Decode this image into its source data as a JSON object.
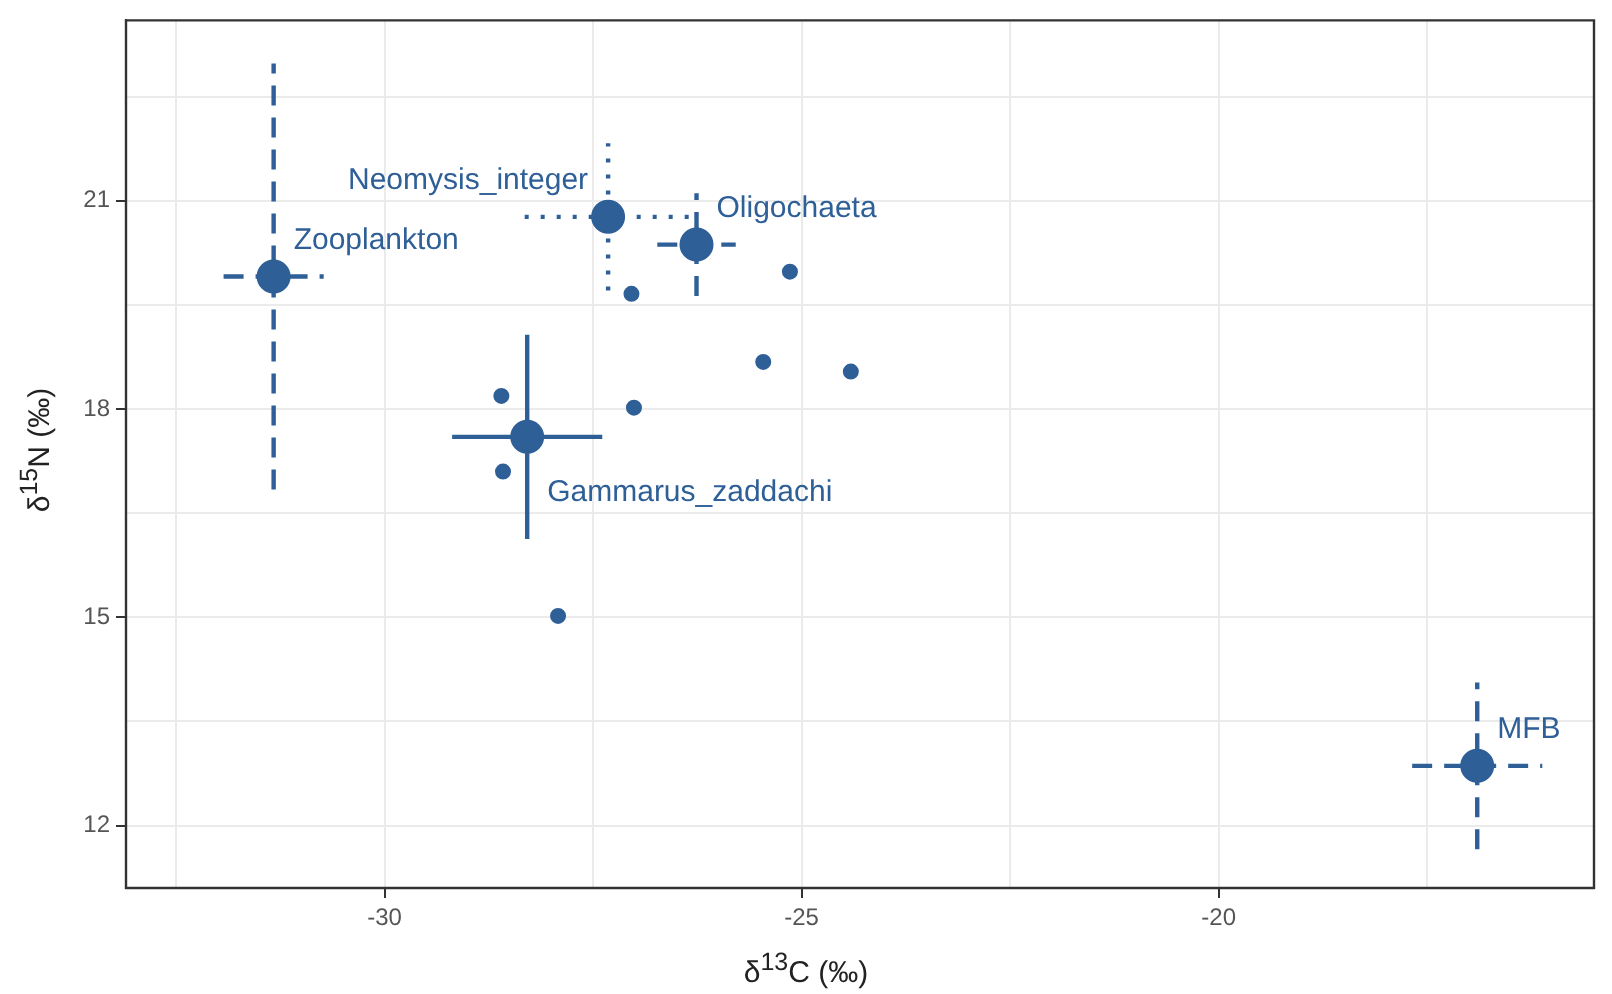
{
  "chart_data": {
    "type": "scatter",
    "xlabel": "δ$^{13}$C (‰)",
    "ylabel": "δ$^{15}$N (‰)",
    "xlim": [
      -33.1,
      -15.5
    ],
    "ylim": [
      11.1,
      23.6
    ],
    "xticks": [
      {
        "value": -32.5,
        "label": null
      },
      -30,
      {
        "value": -27.5,
        "label": null
      },
      -25,
      {
        "value": -22.5,
        "label": null
      },
      -20,
      {
        "value": -17.5,
        "label": null
      }
    ],
    "yticks": [
      {
        "value": 22.5,
        "label": null
      },
      21,
      {
        "value": 19.5,
        "label": null
      },
      18,
      {
        "value": 16.5,
        "label": null
      },
      15,
      {
        "value": 13.5,
        "label": null
      },
      12
    ],
    "grid": true,
    "marker": "circle",
    "series": [
      {
        "name": "Zooplankton",
        "color": "#2f5f97",
        "x": [
          -31.33
        ],
        "values": [
          19.91
        ],
        "errors": [
          3.07
        ],
        "xerrors": [
          0.6
        ],
        "line_style": "dashed"
      },
      {
        "name": "Neomysis_integer",
        "color": "#2f5f97",
        "x": [
          -27.32
        ],
        "values": [
          20.77
        ],
        "errors": [
          1.06
        ],
        "xerrors": [
          1.0
        ],
        "line_style": "dotted"
      },
      {
        "name": "Oligochaeta",
        "color": "#2f5f97",
        "x": [
          -26.26
        ],
        "values": [
          20.37
        ],
        "errors": [
          0.74
        ],
        "xerrors": [
          0.47
        ],
        "line_style": "dashed"
      },
      {
        "name": "Gammarus_zaddachi",
        "color": "#2f5f97",
        "x": [
          -28.29
        ],
        "values": [
          17.6
        ],
        "errors": [
          1.47
        ],
        "xerrors": [
          0.9
        ],
        "line_style": "solid"
      },
      {
        "name": "MFB",
        "color": "#2f5f97",
        "x": [
          -16.9
        ],
        "values": [
          12.86
        ],
        "errors": [
          1.2
        ],
        "xerrors": [
          0.78
        ],
        "line_style": "dashed"
      },
      {
        "color": "#2f5f97",
        "x": [
          -27.04,
          -25.14,
          -25.46,
          -24.41,
          -27.01,
          -28.6,
          -28.58,
          -27.92
        ],
        "values": [
          19.66,
          19.98,
          18.68,
          18.54,
          18.02,
          18.19,
          17.1,
          15.02
        ]
      }
    ]
  }
}
